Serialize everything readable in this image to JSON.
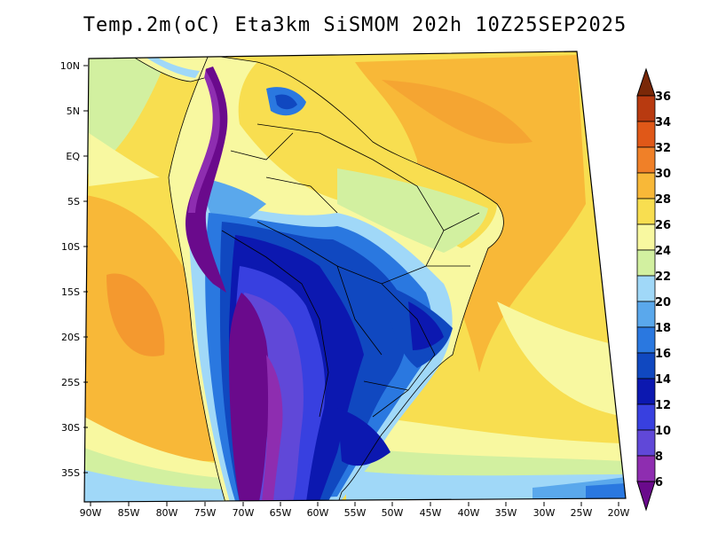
{
  "title": "Temp.2m(oC) Eta3km SiSMOM 202h 10Z25SEP2025",
  "lat_labels": [
    "10N",
    "5N",
    "EQ",
    "5S",
    "10S",
    "15S",
    "20S",
    "25S",
    "30S",
    "35S"
  ],
  "lon_labels": [
    "90W",
    "85W",
    "80W",
    "75W",
    "70W",
    "65W",
    "60W",
    "55W",
    "50W",
    "45W",
    "40W",
    "35W",
    "30W",
    "25W",
    "20W"
  ],
  "colorbar": {
    "levels": [
      "6",
      "8",
      "10",
      "12",
      "14",
      "16",
      "18",
      "20",
      "22",
      "24",
      "26",
      "28",
      "30",
      "32",
      "34",
      "36"
    ],
    "colors": [
      "#6a0a8c",
      "#8e2db0",
      "#6048d8",
      "#3840e0",
      "#0c18b0",
      "#1048c0",
      "#2a78e0",
      "#5aa8ec",
      "#a0d8f8",
      "#d2f0a0",
      "#f8f8a0",
      "#f8de50",
      "#f8b838",
      "#f08028",
      "#e05818",
      "#b83a10",
      "#7a2808"
    ]
  }
}
